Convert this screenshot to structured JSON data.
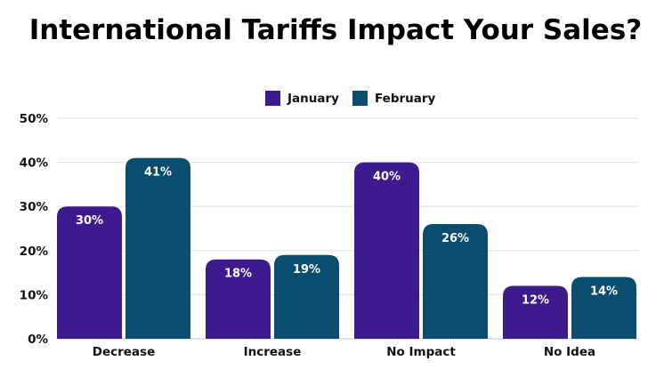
{
  "chart_data": {
    "type": "bar",
    "title": "International Tariffs Impact Your Sales?",
    "categories": [
      "Decrease",
      "Increase",
      "No Impact",
      "No Idea"
    ],
    "series": [
      {
        "name": "January",
        "values": [
          30,
          18,
          40,
          12
        ],
        "color": "#3d1a8e",
        "labels": [
          "30%",
          "18%",
          "40%",
          "12%"
        ]
      },
      {
        "name": "February",
        "values": [
          41,
          19,
          26,
          14
        ],
        "color": "#0b4d6e",
        "labels": [
          "41%",
          "19%",
          "26%",
          "14%"
        ]
      }
    ],
    "ylim": [
      0,
      50
    ],
    "yticks": [
      "0%",
      "10%",
      "20%",
      "30%",
      "40%",
      "50%"
    ],
    "xlabel": "",
    "ylabel": "",
    "grid": true,
    "legend": "top-center"
  }
}
